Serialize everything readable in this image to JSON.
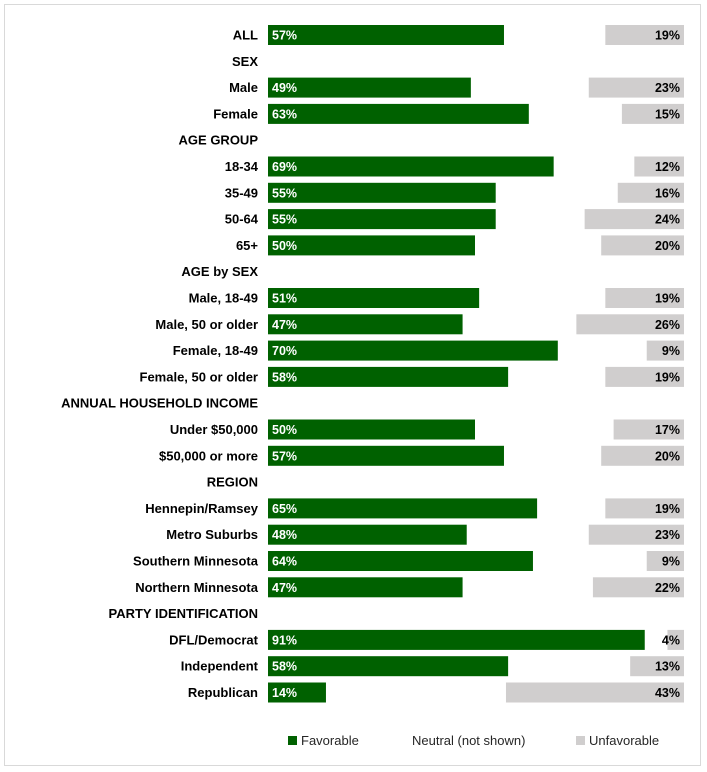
{
  "chart_data": {
    "type": "bar",
    "orientation": "horizontal",
    "grid": false,
    "legend_position": "bottom",
    "series": [
      {
        "name": "Favorable",
        "color": "#006100"
      },
      {
        "name": "Neutral (not shown)"
      },
      {
        "name": "Unfavorable",
        "color": "#d0cece"
      }
    ],
    "rows": [
      {
        "label": "ALL",
        "favorable": 57,
        "unfavorable": 19,
        "fav_text": "57%",
        "unf_text": "19%"
      },
      {
        "label": "SEX",
        "header": true
      },
      {
        "label": "Male",
        "favorable": 49,
        "unfavorable": 23,
        "fav_text": "49%",
        "unf_text": "23%"
      },
      {
        "label": "Female",
        "favorable": 63,
        "unfavorable": 15,
        "fav_text": "63%",
        "unf_text": "15%"
      },
      {
        "label": "AGE GROUP",
        "header": true
      },
      {
        "label": "18-34",
        "favorable": 69,
        "unfavorable": 12,
        "fav_text": "69%",
        "unf_text": "12%"
      },
      {
        "label": "35-49",
        "favorable": 55,
        "unfavorable": 16,
        "fav_text": "55%",
        "unf_text": "16%"
      },
      {
        "label": "50-64",
        "favorable": 55,
        "unfavorable": 24,
        "fav_text": "55%",
        "unf_text": "24%"
      },
      {
        "label": "65+",
        "favorable": 50,
        "unfavorable": 20,
        "fav_text": "50%",
        "unf_text": "20%"
      },
      {
        "label": "AGE by SEX",
        "header": true
      },
      {
        "label": "Male, 18-49",
        "favorable": 51,
        "unfavorable": 19,
        "fav_text": "51%",
        "unf_text": "19%"
      },
      {
        "label": "Male, 50 or older",
        "favorable": 47,
        "unfavorable": 26,
        "fav_text": "47%",
        "unf_text": "26%"
      },
      {
        "label": "Female, 18-49",
        "favorable": 70,
        "unfavorable": 9,
        "fav_text": "70%",
        "unf_text": "9%"
      },
      {
        "label": "Female, 50 or older",
        "favorable": 58,
        "unfavorable": 19,
        "fav_text": "58%",
        "unf_text": "19%"
      },
      {
        "label": "ANNUAL HOUSEHOLD INCOME",
        "header": true
      },
      {
        "label": "Under $50,000",
        "favorable": 50,
        "unfavorable": 17,
        "fav_text": "50%",
        "unf_text": "17%"
      },
      {
        "label": "$50,000 or more",
        "favorable": 57,
        "unfavorable": 20,
        "fav_text": "57%",
        "unf_text": "20%"
      },
      {
        "label": "REGION",
        "header": true
      },
      {
        "label": "Hennepin/Ramsey",
        "favorable": 65,
        "unfavorable": 19,
        "fav_text": "65%",
        "unf_text": "19%"
      },
      {
        "label": "Metro Suburbs",
        "favorable": 48,
        "unfavorable": 23,
        "fav_text": "48%",
        "unf_text": "23%"
      },
      {
        "label": "Southern Minnesota",
        "favorable": 64,
        "unfavorable": 9,
        "fav_text": "64%",
        "unf_text": "9%"
      },
      {
        "label": "Northern Minnesota",
        "favorable": 47,
        "unfavorable": 22,
        "fav_text": "47%",
        "unf_text": "22%"
      },
      {
        "label": "PARTY IDENTIFICATION",
        "header": true
      },
      {
        "label": "DFL/Democrat",
        "favorable": 91,
        "unfavorable": 4,
        "fav_text": "91%",
        "unf_text": "4%"
      },
      {
        "label": "Independent",
        "favorable": 58,
        "unfavorable": 13,
        "fav_text": "58%",
        "unf_text": "13%"
      },
      {
        "label": "Republican",
        "favorable": 14,
        "unfavorable": 43,
        "fav_text": "14%",
        "unf_text": "43%"
      }
    ],
    "xlim": [
      0,
      100
    ]
  }
}
